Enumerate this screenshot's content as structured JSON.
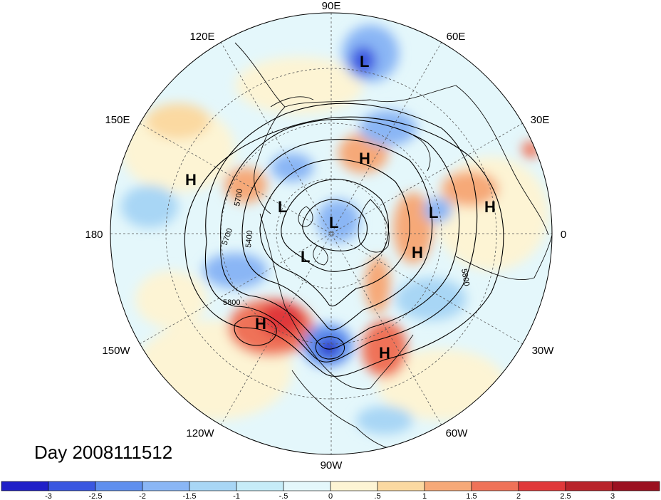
{
  "title": "Day 2008111512",
  "projection": "north-polar-stereographic",
  "longitude_labels": {
    "top": "90E",
    "top_left": "120E",
    "top_right": "60E",
    "upper_left": "150E",
    "upper_right": "30E",
    "left": "180",
    "right": "0",
    "lower_left": "150W",
    "lower_right": "30W",
    "bottom_left": "120W",
    "bottom_right": "60W",
    "bottom": "90W"
  },
  "pressure_systems": [
    {
      "type": "L",
      "region": "siberia-north"
    },
    {
      "type": "H",
      "region": "west-siberia"
    },
    {
      "type": "H",
      "region": "north-pacific-west"
    },
    {
      "type": "L",
      "region": "east-siberian-arctic"
    },
    {
      "type": "L",
      "region": "north-pole"
    },
    {
      "type": "L",
      "region": "canadian-arctic"
    },
    {
      "type": "L",
      "region": "scandinavia"
    },
    {
      "type": "H",
      "region": "north-africa"
    },
    {
      "type": "H",
      "region": "eastern-europe"
    },
    {
      "type": "H",
      "region": "gulf-of-alaska"
    },
    {
      "type": "H",
      "region": "central-atlantic"
    }
  ],
  "contour_labels": [
    "5700",
    "5700",
    "5400",
    "5800",
    "5800"
  ],
  "colorbar": {
    "ticks": [
      "-3",
      "-2.5",
      "-2",
      "-1.5",
      "-1",
      "-.5",
      "0",
      ".5",
      "1",
      "1.5",
      "2",
      "2.5",
      "3"
    ],
    "colors": [
      "#1f1fc8",
      "#3a57e0",
      "#5f8fee",
      "#8ab6f5",
      "#a8d6f5",
      "#c6ecf8",
      "#e4f7fb",
      "#fdf4d4",
      "#fbd9a1",
      "#f6a978",
      "#ef7258",
      "#e0383a",
      "#b8232a",
      "#9b1120"
    ]
  },
  "colors": {
    "land_outline": "#111111",
    "contour": "#000000",
    "grid": "#555555"
  }
}
